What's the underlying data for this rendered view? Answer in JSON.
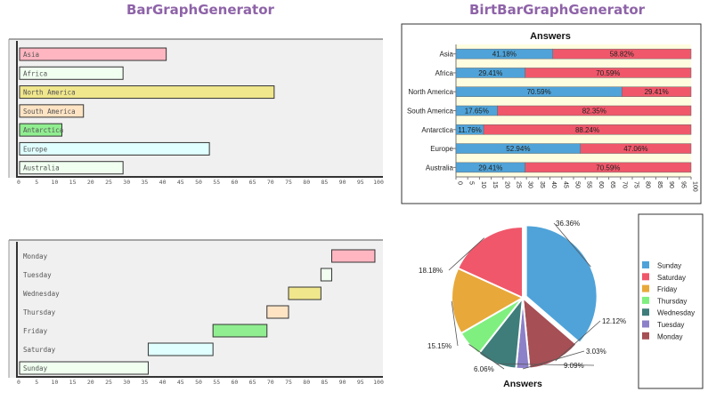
{
  "headings": {
    "left": "BarGraphGenerator",
    "right": "BirtBarGraphGenerator"
  },
  "chart_data": [
    {
      "type": "bar",
      "orientation": "horizontal",
      "title": "",
      "categories": [
        "Asia",
        "Africa",
        "North America",
        "South America",
        "Antarctica",
        "Europe",
        "Australia"
      ],
      "values": [
        41,
        29,
        71,
        18,
        12,
        53,
        29
      ],
      "colors": [
        "#ffb6c1",
        "#f0fff0",
        "#f0e68c",
        "#ffe4c4",
        "#90ee90",
        "#e0ffff",
        "#f0fff0"
      ],
      "xlim": [
        0,
        100
      ],
      "xticks": [
        0,
        5,
        10,
        15,
        20,
        25,
        30,
        35,
        40,
        45,
        50,
        55,
        60,
        65,
        70,
        75,
        80,
        85,
        90,
        95,
        100
      ],
      "grid": false
    },
    {
      "type": "bar",
      "orientation": "horizontal",
      "stacked": true,
      "title": "Answers",
      "categories": [
        "Asia",
        "Africa",
        "North America",
        "South America",
        "Antarctica",
        "Europe",
        "Australia"
      ],
      "series": [
        {
          "color": "#4fa3d9",
          "values": [
            41.18,
            29.41,
            70.59,
            17.65,
            11.76,
            52.94,
            29.41
          ],
          "labels": [
            "41.18%",
            "29.41%",
            "70.59%",
            "17.65%",
            "11.76%",
            "52.94%",
            "29.41%"
          ]
        },
        {
          "color": "#f0576a",
          "values": [
            58.82,
            70.59,
            29.41,
            82.35,
            88.24,
            47.06,
            70.59
          ],
          "labels": [
            "58.82%",
            "70.59%",
            "29.41%",
            "82.35%",
            "88.24%",
            "47.06%",
            "70.59%"
          ]
        }
      ],
      "xlim": [
        0,
        100
      ],
      "xticks": [
        0,
        5,
        10,
        15,
        20,
        25,
        30,
        35,
        40,
        45,
        50,
        55,
        60,
        65,
        70,
        75,
        80,
        85,
        90,
        95,
        100
      ],
      "plot_background": "#fffde0"
    },
    {
      "type": "bar",
      "orientation": "horizontal",
      "floating": true,
      "title": "",
      "categories": [
        "Monday",
        "Tuesday",
        "Wednesday",
        "Thursday",
        "Friday",
        "Saturday",
        "Sunday"
      ],
      "ranges": [
        [
          87,
          99
        ],
        [
          84,
          87
        ],
        [
          75,
          84
        ],
        [
          69,
          75
        ],
        [
          54,
          69
        ],
        [
          36,
          54
        ],
        [
          0,
          36
        ]
      ],
      "colors": [
        "#ffb6c1",
        "#f0fff0",
        "#f0e68c",
        "#ffe4c4",
        "#90ee90",
        "#e0ffff",
        "#f0fff0"
      ],
      "xlim": [
        0,
        100
      ],
      "xticks": [
        0,
        5,
        10,
        15,
        20,
        25,
        30,
        35,
        40,
        45,
        50,
        55,
        60,
        65,
        70,
        75,
        80,
        85,
        90,
        95,
        100
      ]
    },
    {
      "type": "pie",
      "title": "Answers",
      "legend_position": "right",
      "slices": [
        {
          "name": "Sunday",
          "value": 36.36,
          "label": "36.36%",
          "color": "#4fa3d9"
        },
        {
          "name": "Monday",
          "value": 12.12,
          "label": "12.12%",
          "color": "#a64f55"
        },
        {
          "name": "Tuesday",
          "value": 3.03,
          "label": "3.03%",
          "color": "#8c80c8"
        },
        {
          "name": "Wednesday",
          "value": 9.09,
          "label": "9.09%",
          "color": "#3e7d7a"
        },
        {
          "name": "Thursday",
          "value": 6.06,
          "label": "6.06%",
          "color": "#7ff07f"
        },
        {
          "name": "Friday",
          "value": 15.15,
          "label": "15.15%",
          "color": "#e8a93a"
        },
        {
          "name": "Saturday",
          "value": 18.18,
          "label": "18.18%",
          "color": "#f0576a"
        }
      ],
      "legend_order": [
        "Sunday",
        "Saturday",
        "Friday",
        "Thursday",
        "Wednesday",
        "Tuesday",
        "Monday"
      ]
    }
  ]
}
